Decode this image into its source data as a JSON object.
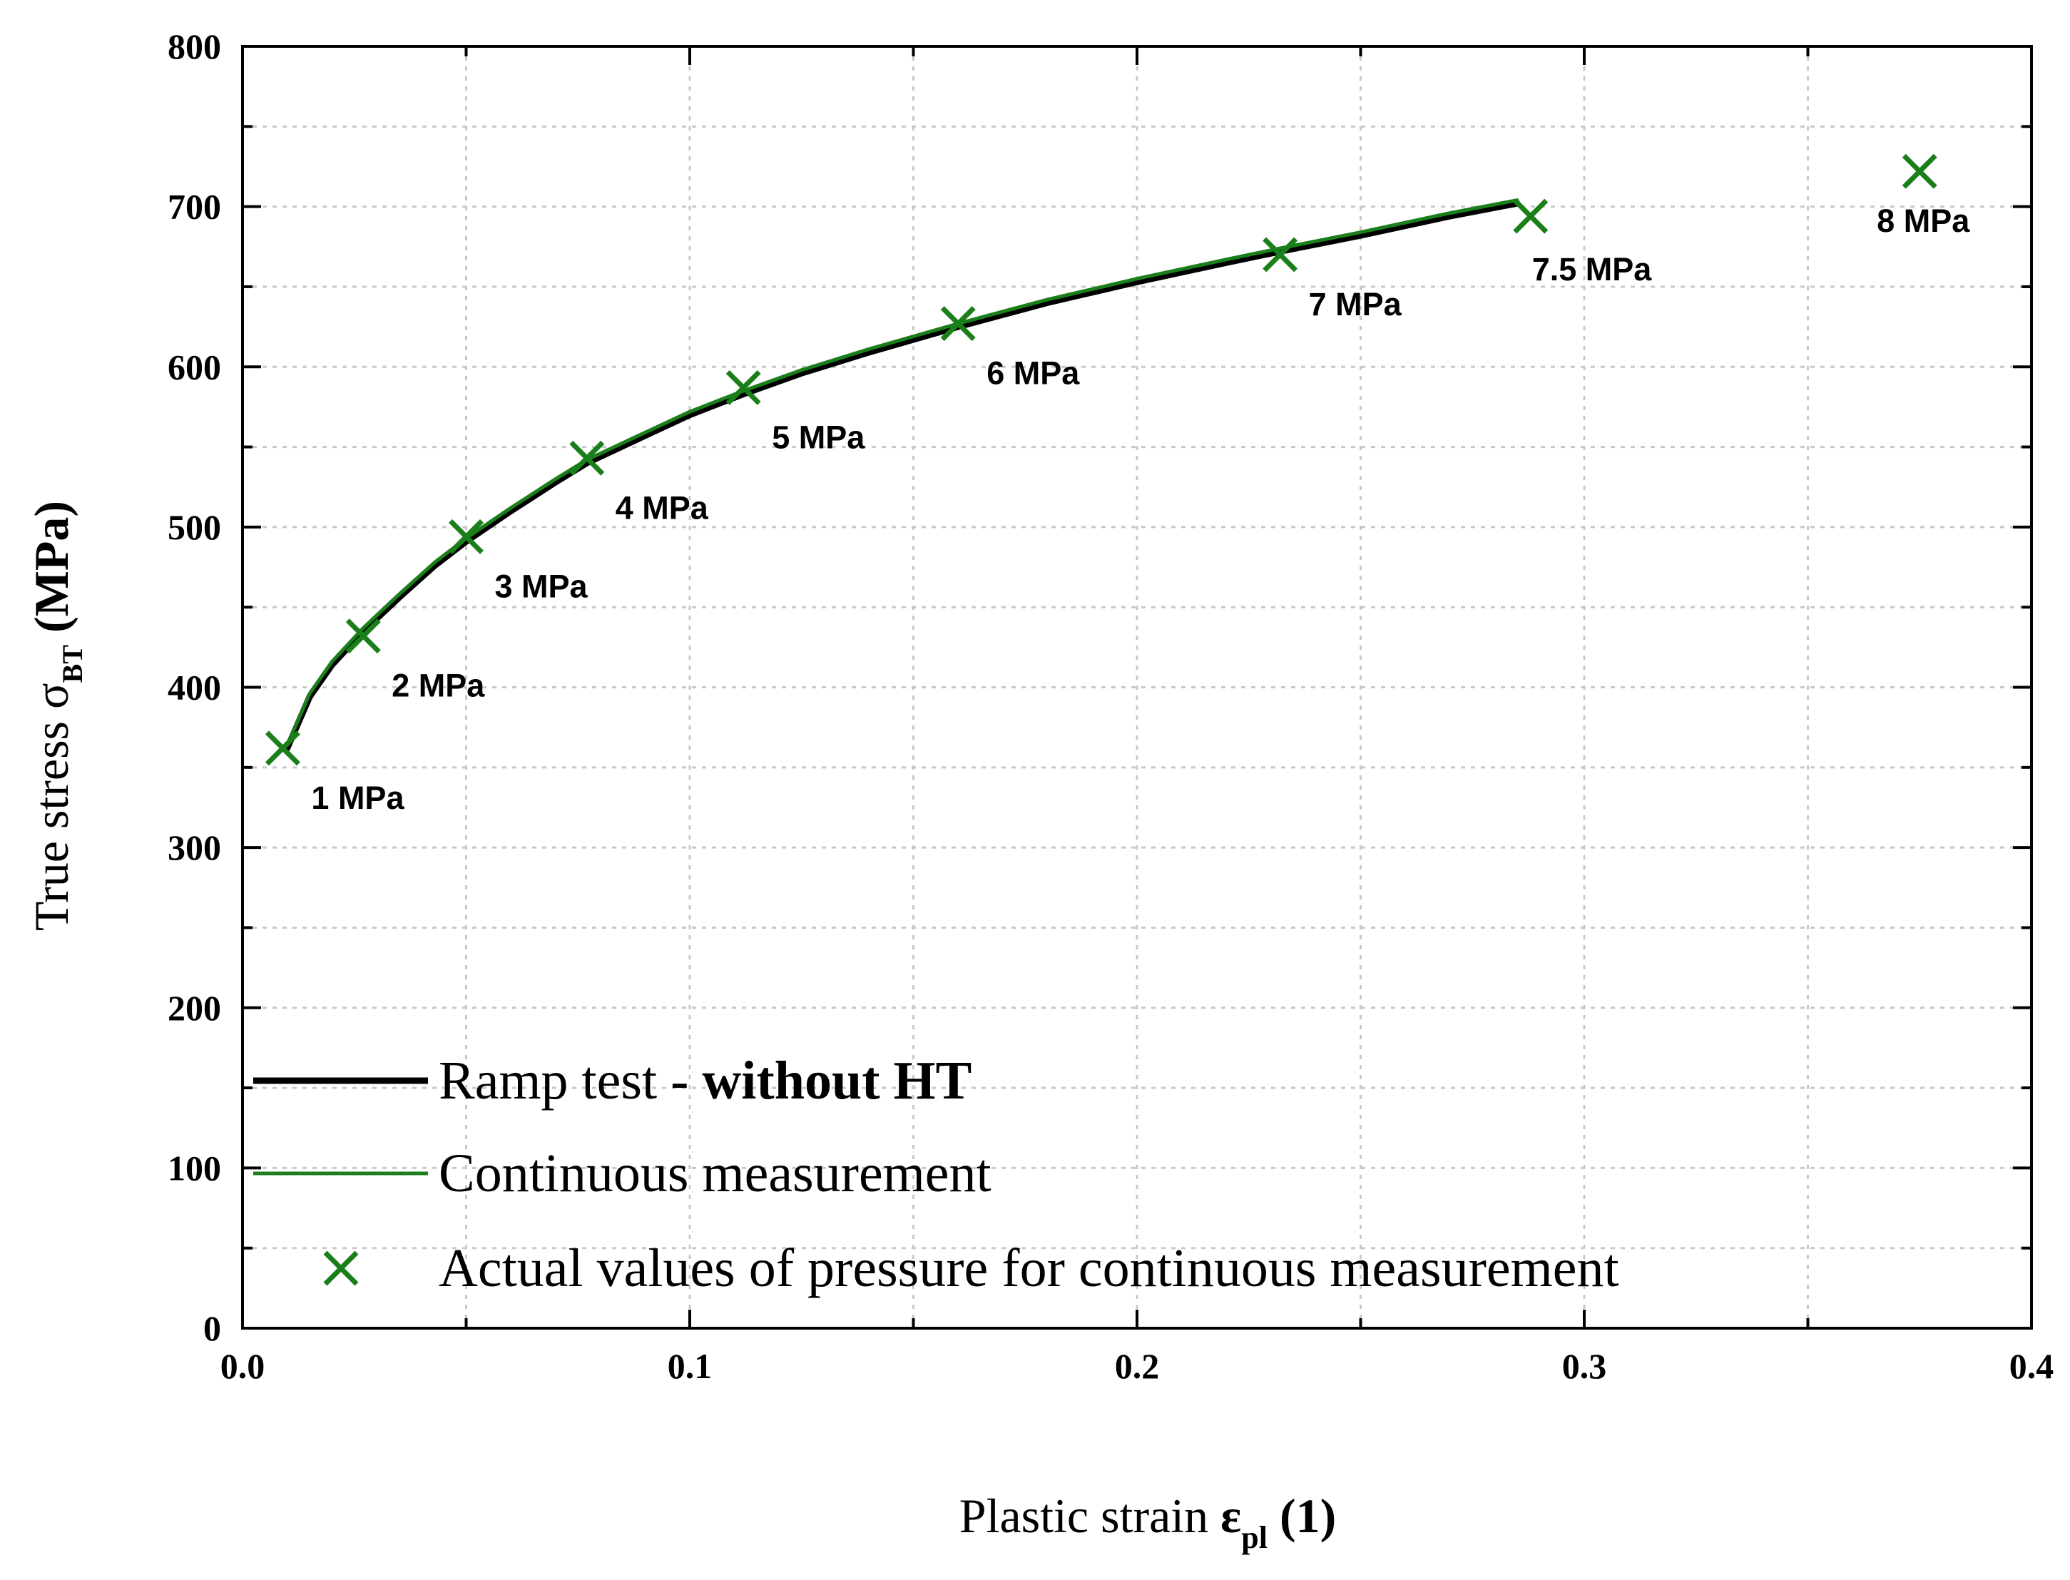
{
  "chart_data": {
    "type": "line",
    "title": "",
    "xlabel": "Plastic strain",
    "xlabel_symbol": "ε",
    "xlabel_sub": "pl",
    "xlabel_unit": "(1)",
    "ylabel": "True stress",
    "ylabel_symbol": "σ",
    "ylabel_sub": "BT",
    "ylabel_unit": "(MPa)",
    "xlim": [
      0.0,
      0.4
    ],
    "ylim": [
      0,
      800
    ],
    "x_ticks": [
      0.0,
      0.1,
      0.2,
      0.3,
      0.4
    ],
    "x_tick_labels": [
      "0.0",
      "0.1",
      "0.2",
      "0.3",
      "0.4"
    ],
    "y_ticks": [
      0,
      100,
      200,
      300,
      400,
      500,
      600,
      700,
      800
    ],
    "y_tick_labels": [
      "0",
      "100",
      "200",
      "300",
      "400",
      "500",
      "600",
      "700",
      "800"
    ],
    "grid": true,
    "series": [
      {
        "name": "Ramp test - without HT",
        "name_plain": "Ramp test - ",
        "name_bold": "without HT",
        "color": "#000000",
        "kind": "line",
        "x": [
          0.01,
          0.015,
          0.02,
          0.027,
          0.035,
          0.043,
          0.05,
          0.06,
          0.07,
          0.077,
          0.09,
          0.1,
          0.112,
          0.125,
          0.14,
          0.16,
          0.18,
          0.2,
          0.22,
          0.232,
          0.25,
          0.27,
          0.285
        ],
        "y": [
          362,
          394,
          414,
          435,
          456,
          476,
          491,
          510,
          528,
          540,
          557,
          570,
          583,
          596,
          609,
          625,
          640,
          653,
          665,
          672,
          682,
          694,
          702
        ]
      },
      {
        "name": "Continuous measurement",
        "color": "#1a7f1a",
        "kind": "line",
        "x": [
          0.01,
          0.015,
          0.02,
          0.027,
          0.035,
          0.043,
          0.05,
          0.06,
          0.07,
          0.077,
          0.09,
          0.1,
          0.112,
          0.125,
          0.14,
          0.16,
          0.18,
          0.2,
          0.22,
          0.232,
          0.25,
          0.27,
          0.285
        ],
        "y": [
          364,
          396,
          416,
          437,
          458,
          478,
          493,
          512,
          530,
          542,
          559,
          572,
          585,
          598,
          611,
          627,
          642,
          655,
          667,
          674,
          684,
          696,
          704
        ]
      },
      {
        "name": "Actual values of pressure for continuous measurement",
        "color": "#1a7f1a",
        "kind": "scatter",
        "marker": "x",
        "x": [
          0.009,
          0.027,
          0.05,
          0.077,
          0.112,
          0.16,
          0.232,
          0.288,
          0.375
        ],
        "y": [
          362,
          432,
          494,
          543,
          587,
          627,
          670,
          694,
          722
        ],
        "labels": [
          "1 MPa",
          "2 MPa",
          "3 MPa",
          "4 MPa",
          "5 MPa",
          "6 MPa",
          "7 MPa",
          "7.5 MPa",
          "8 MPa"
        ]
      }
    ],
    "legend_position": "bottom-left"
  }
}
